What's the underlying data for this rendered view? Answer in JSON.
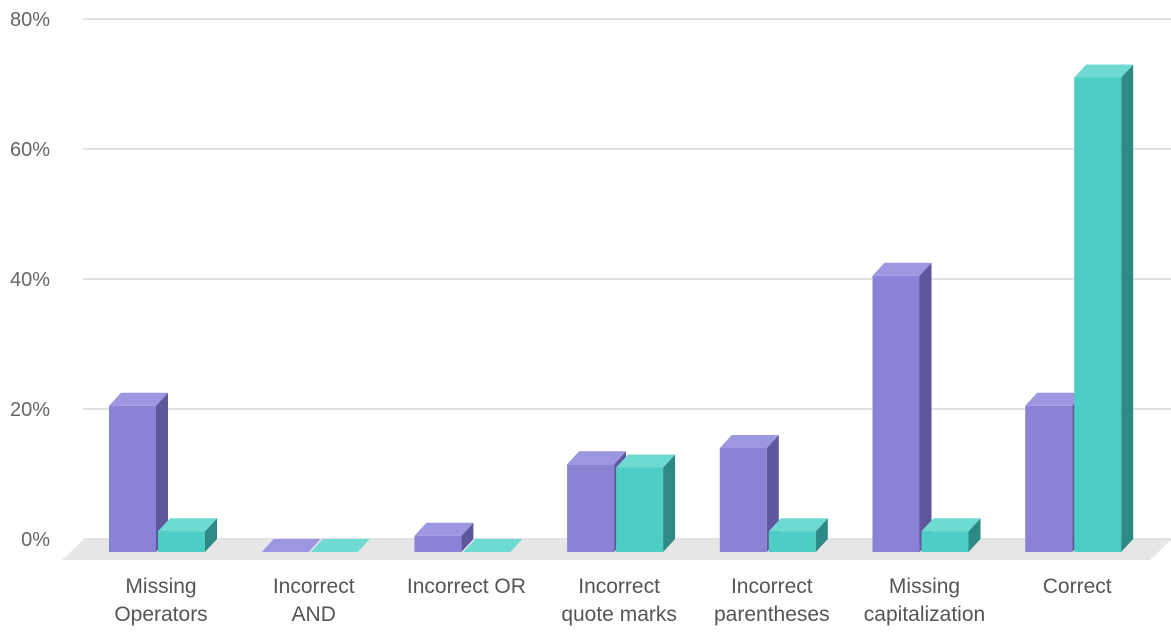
{
  "chart_data": {
    "type": "bar",
    "style": "3d-grouped-bar",
    "title": "",
    "xlabel": "",
    "ylabel": "",
    "categories": [
      [
        "Missing",
        "Operators"
      ],
      [
        "Incorrect",
        "AND"
      ],
      [
        "Incorrect OR"
      ],
      [
        "Incorrect",
        "quote marks"
      ],
      [
        "Incorrect",
        "parentheses"
      ],
      [
        "Missing",
        "capitalization"
      ],
      [
        "Correct"
      ]
    ],
    "series": [
      {
        "color": "#8a82d4",
        "top_color": "#9d96e0",
        "side_color": "#5f579e",
        "values": [
          22.5,
          0,
          2.5,
          13.5,
          16,
          42.5,
          22.5
        ]
      },
      {
        "color": "#4ecdc4",
        "top_color": "#6fdad2",
        "side_color": "#2e8a84",
        "values": [
          3.2,
          0,
          0,
          13,
          3.2,
          3.2,
          73
        ]
      }
    ],
    "ylim": [
      0,
      80
    ],
    "yticks": [
      0,
      20,
      40,
      60,
      80
    ],
    "ytick_labels": [
      "0%",
      "20%",
      "40%",
      "60%",
      "80%"
    ],
    "grid": true,
    "legend": "none"
  }
}
